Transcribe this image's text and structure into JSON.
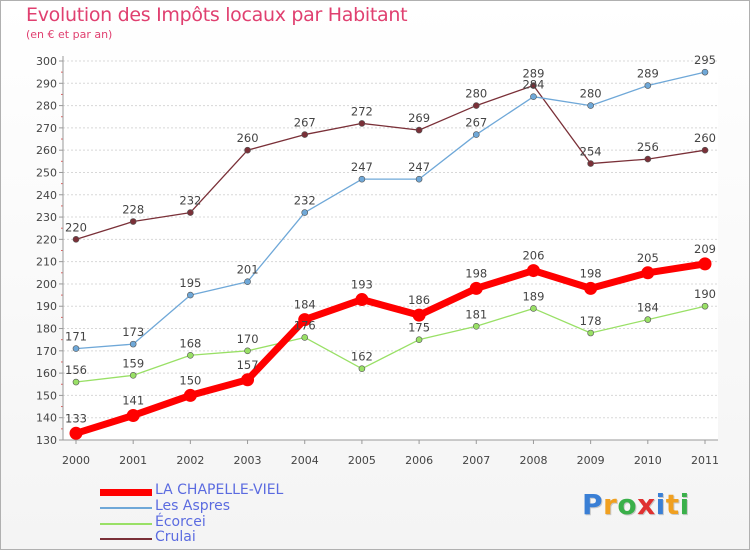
{
  "chart_data": {
    "type": "line",
    "title": "Evolution des Impôts locaux par Habitant",
    "subtitle": "(en € et par an)",
    "x": [
      "2000",
      "2001",
      "2002",
      "2003",
      "2004",
      "2005",
      "2006",
      "2007",
      "2008",
      "2009",
      "2010",
      "2011"
    ],
    "ylim": [
      130,
      300
    ],
    "yticks": [
      130,
      140,
      150,
      160,
      170,
      180,
      190,
      200,
      210,
      220,
      230,
      240,
      250,
      260,
      270,
      280,
      290,
      300
    ],
    "grid": "horizontal",
    "legend_position": "bottom-left",
    "series": [
      {
        "name": "LA CHAPELLE-VIEL",
        "color": "#ff0000",
        "values": [
          133,
          141,
          150,
          157,
          184,
          193,
          186,
          198,
          206,
          198,
          205,
          209
        ]
      },
      {
        "name": "Les Aspres",
        "color": "#6fa8d8",
        "values": [
          171,
          173,
          195,
          201,
          232,
          247,
          247,
          267,
          284,
          280,
          289,
          295
        ]
      },
      {
        "name": "Écorcei",
        "color": "#99e066",
        "values": [
          156,
          159,
          168,
          170,
          176,
          162,
          175,
          181,
          189,
          178,
          184,
          190
        ]
      },
      {
        "name": "Crulai",
        "color": "#7a3038",
        "values": [
          220,
          228,
          232,
          260,
          267,
          272,
          269,
          280,
          289,
          254,
          256,
          260
        ]
      }
    ]
  },
  "brand": {
    "letters": [
      "P",
      "r",
      "o",
      "x",
      "i",
      "t",
      "i"
    ],
    "colors": [
      "#3a7fd5",
      "#f0a020",
      "#3ab04a",
      "#e03030",
      "#3a7fd5",
      "#f0a020",
      "#3ab04a"
    ]
  }
}
